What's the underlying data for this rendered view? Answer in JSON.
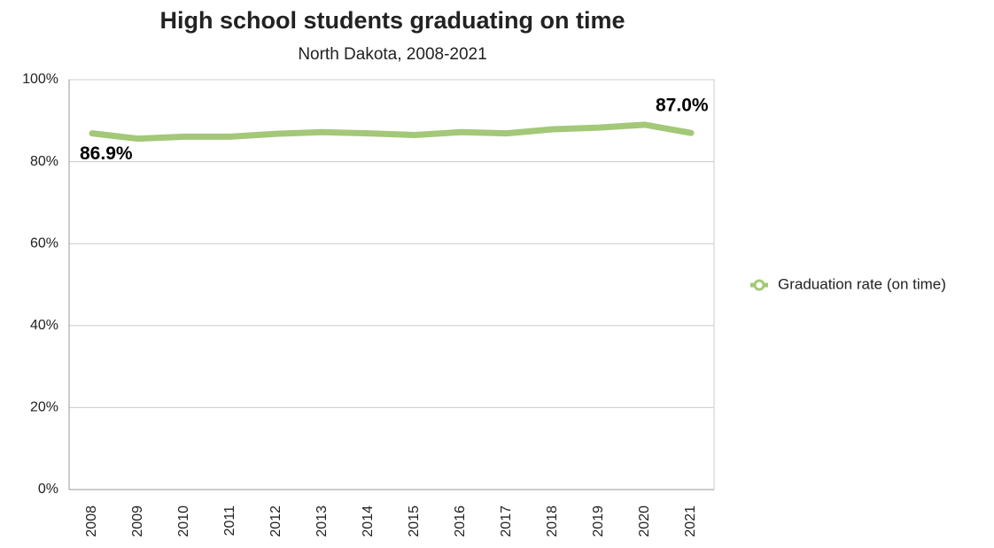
{
  "chart_data": {
    "type": "line",
    "title": "High school students graduating on time",
    "subtitle": "North Dakota, 2008-2021",
    "categories": [
      "2008",
      "2009",
      "2010",
      "2011",
      "2012",
      "2013",
      "2014",
      "2015",
      "2016",
      "2017",
      "2018",
      "2019",
      "2020",
      "2021"
    ],
    "series": [
      {
        "name": "Graduation rate (on time)",
        "color": "#a3c878",
        "values": [
          86.9,
          85.6,
          86.1,
          86.1,
          86.8,
          87.2,
          86.9,
          86.5,
          87.2,
          86.9,
          87.9,
          88.3,
          89.0,
          87.0
        ],
        "value_labels": [
          "86.9%",
          null,
          null,
          null,
          null,
          null,
          null,
          null,
          null,
          null,
          null,
          null,
          null,
          "87.0%"
        ]
      }
    ],
    "ylim": [
      0,
      100
    ],
    "yticks": [
      {
        "value": 0,
        "label": "0%"
      },
      {
        "value": 20,
        "label": "20%"
      },
      {
        "value": 40,
        "label": "40%"
      },
      {
        "value": 60,
        "label": "60%"
      },
      {
        "value": 80,
        "label": "80%"
      },
      {
        "value": 100,
        "label": "100%"
      }
    ],
    "grid": true,
    "legend": "right"
  }
}
